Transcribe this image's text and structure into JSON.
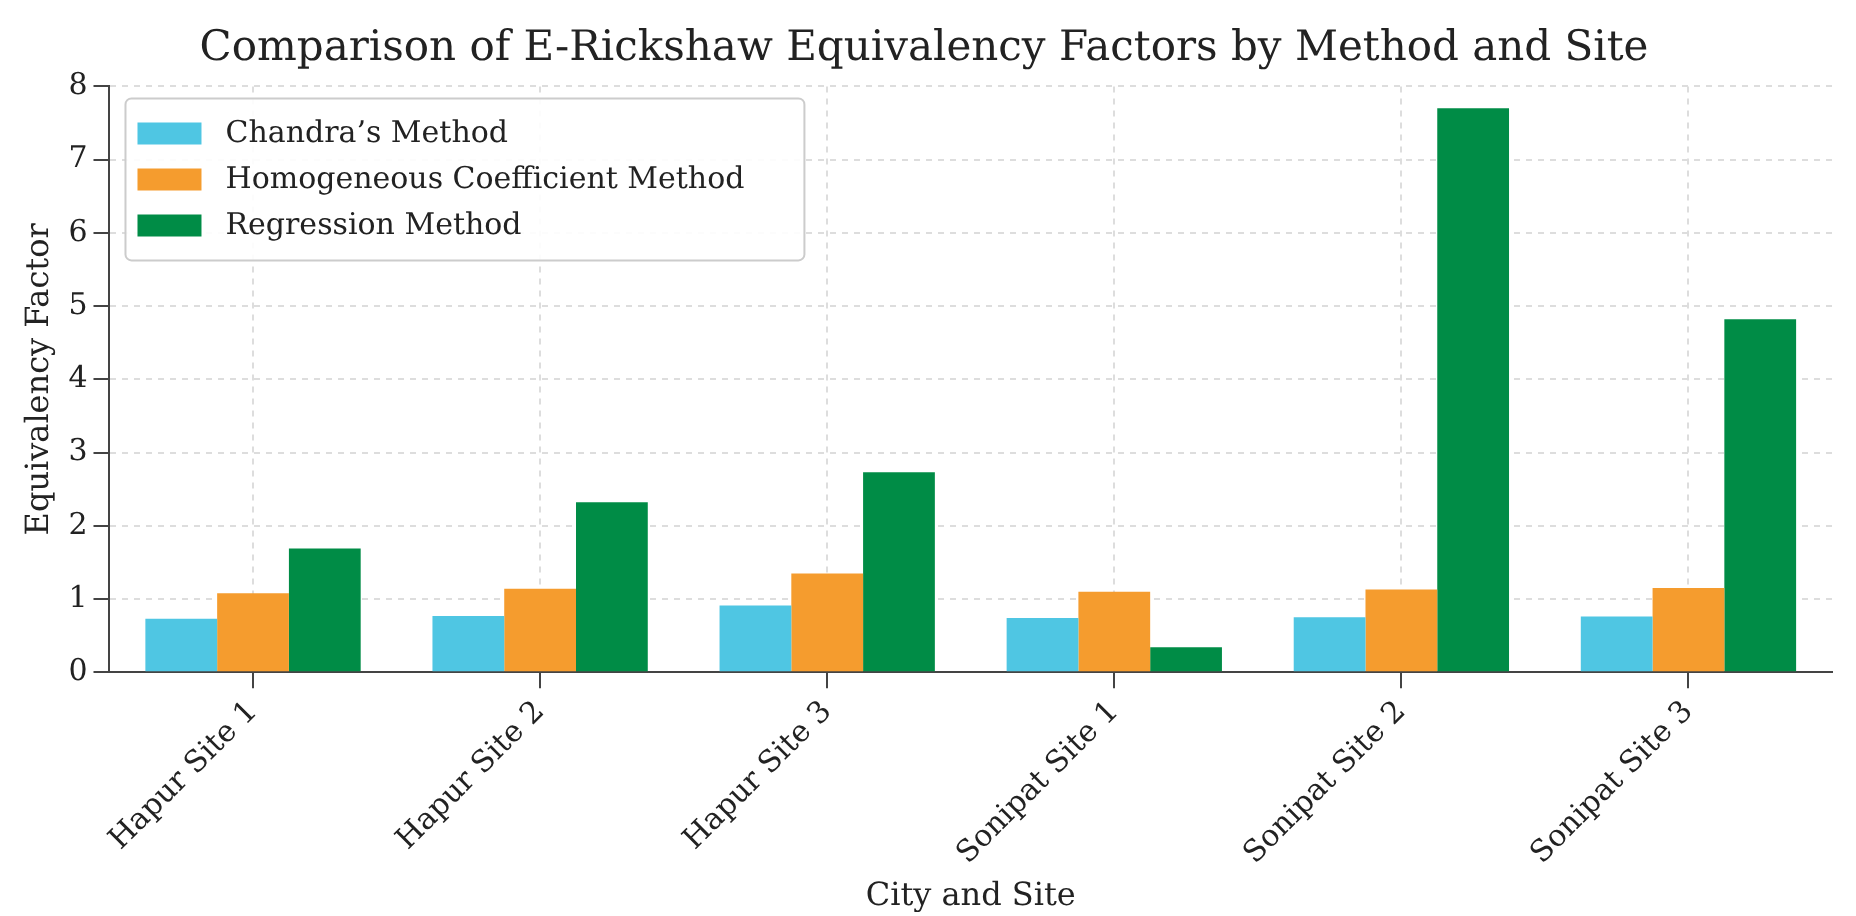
{
  "chart_data": {
    "type": "bar",
    "title": "Comparison of E-Rickshaw Equivalency Factors by Method and Site",
    "xlabel": "City and Site",
    "ylabel": "Equivalency Factor",
    "categories": [
      "Hapur Site 1",
      "Hapur Site 2",
      "Hapur Site 3",
      "Sonipat Site 1",
      "Sonipat Site 2",
      "Sonipat Site 3"
    ],
    "series": [
      {
        "name": "Chandra’s Method",
        "color": "#4fc6e3",
        "values": [
          0.73,
          0.77,
          0.91,
          0.74,
          0.75,
          0.76
        ]
      },
      {
        "name": "Homogeneous Coefficient Method",
        "color": "#f59c2e",
        "values": [
          1.08,
          1.14,
          1.35,
          1.1,
          1.13,
          1.15
        ]
      },
      {
        "name": "Regression Method",
        "color": "#008c46",
        "values": [
          1.69,
          2.32,
          2.73,
          0.34,
          7.7,
          4.82
        ]
      }
    ],
    "ylim": [
      0,
      8
    ],
    "yticks": [
      0,
      1,
      2,
      3,
      4,
      5,
      6,
      7,
      8
    ],
    "grid": true,
    "legend": "top left"
  }
}
